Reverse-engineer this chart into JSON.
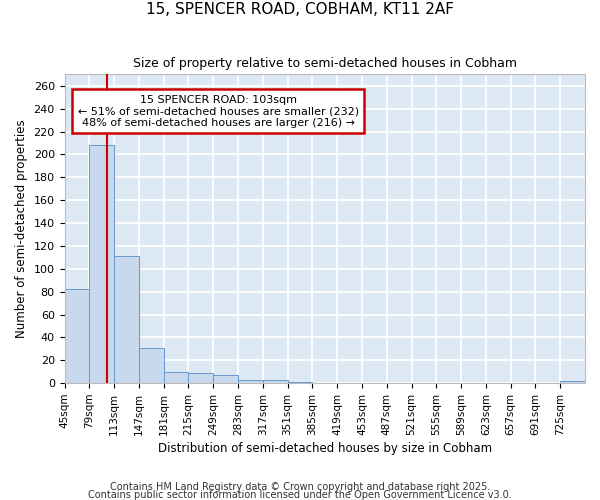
{
  "title1": "15, SPENCER ROAD, COBHAM, KT11 2AF",
  "title2": "Size of property relative to semi-detached houses in Cobham",
  "xlabel": "Distribution of semi-detached houses by size in Cobham",
  "ylabel": "Number of semi-detached properties",
  "categories": [
    "45sqm",
    "79sqm",
    "113sqm",
    "147sqm",
    "181sqm",
    "215sqm",
    "249sqm",
    "283sqm",
    "317sqm",
    "351sqm",
    "385sqm",
    "419sqm",
    "453sqm",
    "487sqm",
    "521sqm",
    "555sqm",
    "589sqm",
    "623sqm",
    "657sqm",
    "691sqm",
    "725sqm"
  ],
  "bin_edges": [
    45,
    79,
    113,
    147,
    181,
    215,
    249,
    283,
    317,
    351,
    385,
    419,
    453,
    487,
    521,
    555,
    589,
    623,
    657,
    691,
    725,
    759
  ],
  "values": [
    82,
    208,
    111,
    31,
    10,
    9,
    7,
    3,
    3,
    1,
    0,
    0,
    0,
    0,
    0,
    0,
    0,
    0,
    0,
    0,
    2
  ],
  "bar_color": "#c8d8ed",
  "bar_edge_color": "#6699cc",
  "plot_bg_color": "#dde8f5",
  "figure_bg_color": "#ffffff",
  "grid_color": "#ffffff",
  "red_line_x": 103,
  "annotation_title": "15 SPENCER ROAD: 103sqm",
  "annotation_line1": "← 51% of semi-detached houses are smaller (232)",
  "annotation_line2": "48% of semi-detached houses are larger (216) →",
  "annotation_box_color": "#ffffff",
  "annotation_box_edge": "#cc0000",
  "ylim": [
    0,
    270
  ],
  "yticks": [
    0,
    20,
    40,
    60,
    80,
    100,
    120,
    140,
    160,
    180,
    200,
    220,
    240,
    260
  ],
  "footer1": "Contains HM Land Registry data © Crown copyright and database right 2025.",
  "footer2": "Contains public sector information licensed under the Open Government Licence v3.0."
}
